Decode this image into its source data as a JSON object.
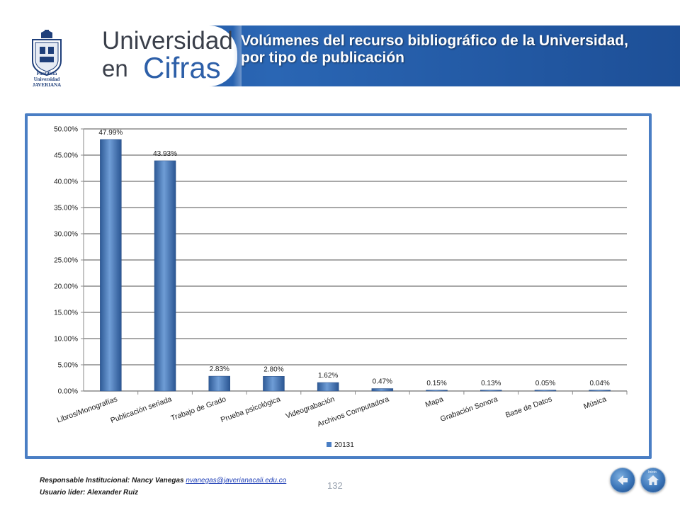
{
  "header": {
    "brand_line1": "Universidad",
    "brand_line2a": "en",
    "brand_line2b": "Cifras",
    "crest_text": "Pontificia Universidad JAVERIANA",
    "title": "Volúmenes del recurso bibliográfico de la Universidad, por tipo de publicación"
  },
  "chart_data": {
    "type": "bar",
    "categories": [
      "Libros/Monografías",
      "Publicación seriada",
      "Trabajo de Grado",
      "Prueba psicológica",
      "Videograbación",
      "Archivos Computadora",
      "Mapa",
      "Grabación Sonora",
      "Base de Datos",
      "Música"
    ],
    "series": [
      {
        "name": "20131",
        "values": [
          47.99,
          43.93,
          2.83,
          2.8,
          1.62,
          0.47,
          0.15,
          0.13,
          0.05,
          0.04
        ],
        "labels": [
          "47.99%",
          "43.93%",
          "2.83%",
          "2.80%",
          "1.62%",
          "0.47%",
          "0.15%",
          "0.13%",
          "0.05%",
          "0.04%"
        ]
      }
    ],
    "y_ticks": [
      "0.00%",
      "5.00%",
      "10.00%",
      "15.00%",
      "20.00%",
      "25.00%",
      "30.00%",
      "35.00%",
      "40.00%",
      "45.00%",
      "50.00%"
    ],
    "ylim": [
      0,
      50
    ],
    "grid": true,
    "legend_position": "bottom",
    "bar_color": "#4a7ec4"
  },
  "footer": {
    "responsible_label": "Responsable Institucional: Nancy Vanegas",
    "email": "nvanegas@javerianacali.edu.co",
    "leader": "Usuario líder: Alexander Ruiz",
    "page_number": "132"
  },
  "nav": {
    "back_icon": "back-arrow-icon",
    "home_icon": "home-icon",
    "home_label": "Inicio"
  }
}
